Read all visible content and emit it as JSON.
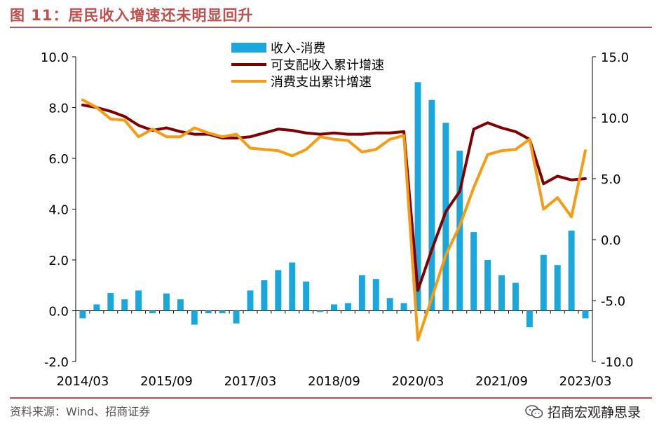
{
  "header": {
    "title": "图 11：居民收入增速还未明显回升"
  },
  "footer": {
    "source": "资料来源：Wind、招商证券",
    "brand": "招商宏观静思录"
  },
  "chart_data": {
    "type": "bar+line",
    "title": "图 11：居民收入增速还未明显回升",
    "x_tick_labels": [
      "2014/03",
      "2015/09",
      "2017/03",
      "2018/09",
      "2020/03",
      "2021/09",
      "2023/03"
    ],
    "x_tick_indices": [
      0,
      6,
      12,
      18,
      24,
      30,
      36
    ],
    "left_axis": {
      "ylim": [
        -2.0,
        10.0
      ],
      "ticks": [
        "10.0",
        "8.0",
        "6.0",
        "4.0",
        "2.0",
        "0.0",
        "-2.0"
      ]
    },
    "right_axis": {
      "ylim": [
        -10.0,
        15.0
      ],
      "ticks": [
        "15.0",
        "10.0",
        "5.0",
        "0.0",
        "-5.0",
        "-10.0"
      ]
    },
    "legend": {
      "position": "top-center",
      "entries": [
        "收入-消费",
        "可支配收入累计增速",
        "消费支出累计增速"
      ]
    },
    "colors": {
      "bar": "#1aa7dc",
      "income": "#7f0000",
      "consumption": "#f59b14",
      "axis": "#000000"
    },
    "series": [
      {
        "name": "收入-消费",
        "axis": "left",
        "kind": "bar",
        "values": [
          -0.3,
          0.25,
          0.7,
          0.45,
          0.8,
          -0.1,
          0.68,
          0.45,
          -0.55,
          -0.1,
          -0.1,
          -0.5,
          0.8,
          1.2,
          1.6,
          1.9,
          1.15,
          -0.05,
          0.25,
          0.3,
          1.4,
          1.25,
          0.5,
          0.3,
          9.0,
          8.3,
          7.4,
          6.3,
          3.1,
          2.0,
          1.4,
          1.1,
          -0.65,
          2.2,
          1.8,
          3.15,
          -0.3
        ]
      },
      {
        "name": "可支配收入累计增速",
        "axis": "left",
        "kind": "line",
        "values": [
          8.1,
          8.0,
          7.85,
          7.65,
          7.3,
          7.1,
          7.2,
          7.05,
          6.95,
          6.95,
          6.8,
          6.8,
          6.85,
          7.0,
          7.15,
          7.1,
          7.0,
          6.95,
          7.0,
          6.95,
          6.95,
          7.0,
          7.0,
          7.05,
          0.8,
          2.4,
          3.9,
          4.7,
          7.15,
          7.4,
          7.2,
          7.05,
          6.75,
          5.0,
          5.3,
          5.15,
          5.2
        ]
      },
      {
        "name": "消费支出累计增速",
        "axis": "left",
        "kind": "line",
        "values": [
          8.3,
          8.0,
          7.55,
          7.5,
          6.85,
          7.15,
          6.85,
          6.85,
          7.2,
          7.0,
          6.85,
          6.95,
          6.4,
          6.35,
          6.3,
          6.1,
          6.35,
          6.85,
          6.75,
          6.7,
          6.25,
          6.35,
          6.75,
          6.9,
          -1.15,
          0.5,
          2.2,
          3.35,
          4.85,
          6.15,
          6.3,
          6.35,
          6.75,
          4.0,
          4.45,
          3.7,
          6.3
        ]
      }
    ]
  }
}
